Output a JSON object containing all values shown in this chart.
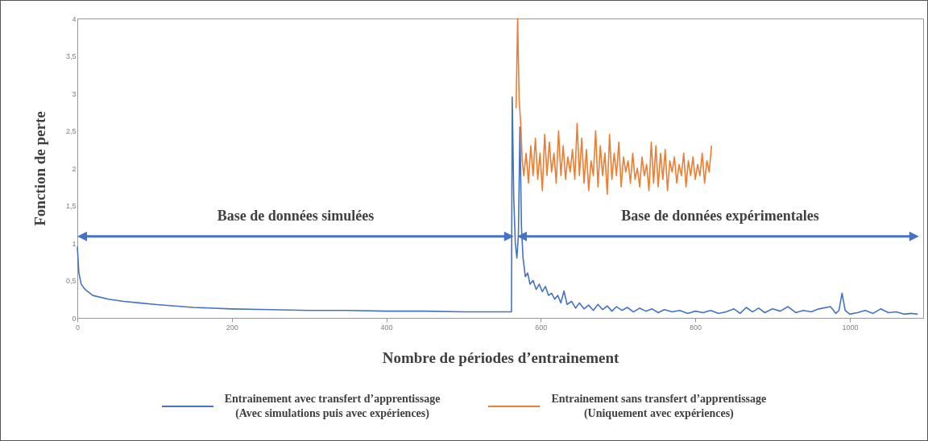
{
  "chart_data": {
    "type": "line",
    "xlabel": "Nombre de périodes d’entrainement",
    "ylabel": "Fonction de perte",
    "xlim": [
      0,
      1095
    ],
    "xticks": [
      0,
      200,
      400,
      600,
      800,
      1000
    ],
    "ylim": [
      0,
      4
    ],
    "yticks": [
      0,
      {
        "value": 0.5,
        "label": "0,5"
      },
      1,
      {
        "value": 1.5,
        "label": "1,5"
      },
      2,
      {
        "value": 2.5,
        "label": "2,5"
      },
      3,
      {
        "value": 3.5,
        "label": "3,5"
      },
      4
    ],
    "legend": "bottom",
    "annotations": [
      "Base de données simulées",
      "Base de données expérimentales"
    ],
    "series": [
      {
        "name": "Entrainement avec transfert d’apprentissage\n(Avec simulations puis avec expériences)",
        "color": "#4472c4",
        "x": [
          0,
          2,
          5,
          10,
          20,
          40,
          60,
          80,
          100,
          150,
          200,
          250,
          300,
          350,
          400,
          450,
          500,
          548,
          562,
          563,
          565,
          567,
          569,
          571,
          573,
          575,
          577,
          580,
          583,
          586,
          590,
          594,
          598,
          602,
          606,
          610,
          614,
          618,
          622,
          626,
          630,
          634,
          640,
          645,
          650,
          656,
          662,
          668,
          674,
          680,
          686,
          692,
          698,
          705,
          712,
          720,
          728,
          736,
          744,
          752,
          760,
          770,
          780,
          790,
          800,
          810,
          820,
          830,
          840,
          850,
          858,
          866,
          874,
          882,
          890,
          900,
          910,
          920,
          930,
          940,
          950,
          960,
          975,
          982,
          986,
          990,
          994,
          1000,
          1010,
          1020,
          1030,
          1040,
          1050,
          1060,
          1070,
          1080,
          1088
        ],
        "values": [
          0.95,
          0.6,
          0.45,
          0.38,
          0.3,
          0.25,
          0.22,
          0.2,
          0.18,
          0.14,
          0.12,
          0.11,
          0.1,
          0.1,
          0.09,
          0.09,
          0.08,
          0.08,
          0.08,
          2.95,
          1.6,
          1.0,
          0.8,
          1.1,
          2.55,
          1.2,
          0.8,
          0.55,
          0.6,
          0.45,
          0.5,
          0.38,
          0.45,
          0.35,
          0.42,
          0.3,
          0.33,
          0.25,
          0.3,
          0.2,
          0.36,
          0.18,
          0.22,
          0.13,
          0.2,
          0.12,
          0.17,
          0.1,
          0.18,
          0.11,
          0.16,
          0.09,
          0.15,
          0.1,
          0.14,
          0.08,
          0.13,
          0.09,
          0.12,
          0.07,
          0.11,
          0.08,
          0.1,
          0.06,
          0.09,
          0.07,
          0.1,
          0.06,
          0.08,
          0.12,
          0.06,
          0.14,
          0.08,
          0.13,
          0.07,
          0.12,
          0.09,
          0.15,
          0.07,
          0.1,
          0.08,
          0.12,
          0.15,
          0.06,
          0.1,
          0.33,
          0.1,
          0.05,
          0.07,
          0.1,
          0.06,
          0.12,
          0.07,
          0.08,
          0.05,
          0.06,
          0.05
        ]
      },
      {
        "name": "Entrainement sans transfert d’apprentissage\n(Uniquement avec expériences)",
        "color": "#ed7d31",
        "x": [
          568,
          570,
          572,
          574,
          576,
          578,
          581,
          584,
          587,
          590,
          593,
          596,
          599,
          602,
          605,
          608,
          611,
          614,
          617,
          620,
          623,
          626,
          629,
          632,
          635,
          638,
          641,
          644,
          647,
          650,
          653,
          656,
          659,
          662,
          665,
          668,
          671,
          674,
          677,
          680,
          683,
          686,
          689,
          692,
          695,
          698,
          701,
          704,
          707,
          710,
          713,
          716,
          719,
          722,
          725,
          728,
          731,
          734,
          737,
          740,
          743,
          746,
          749,
          752,
          755,
          758,
          761,
          764,
          767,
          770,
          773,
          776,
          779,
          782,
          785,
          788,
          791,
          794,
          797,
          800,
          803,
          806,
          809,
          812,
          815,
          818,
          821
        ],
        "values": [
          2.8,
          4.0,
          2.9,
          2.6,
          2.1,
          1.9,
          2.2,
          1.8,
          2.3,
          1.9,
          2.4,
          1.85,
          2.2,
          1.7,
          2.45,
          1.9,
          2.35,
          1.95,
          2.2,
          1.8,
          2.5,
          1.9,
          2.3,
          1.85,
          2.15,
          1.95,
          2.25,
          1.85,
          2.6,
          1.9,
          2.4,
          1.8,
          2.25,
          1.7,
          2.1,
          1.9,
          2.5,
          1.75,
          2.3,
          1.9,
          2.2,
          1.65,
          2.45,
          1.85,
          2.2,
          1.9,
          2.35,
          1.75,
          2.15,
          1.95,
          2.1,
          1.8,
          2.2,
          1.85,
          2.0,
          1.75,
          2.15,
          1.9,
          2.05,
          1.7,
          2.35,
          1.8,
          2.3,
          1.75,
          2.2,
          1.85,
          2.25,
          1.7,
          2.1,
          1.95,
          2.15,
          1.8,
          2.05,
          1.9,
          2.2,
          1.75,
          2.1,
          1.9,
          2.15,
          1.85,
          2.05,
          1.9,
          2.2,
          1.8,
          2.1,
          1.95,
          2.3
        ]
      }
    ]
  }
}
